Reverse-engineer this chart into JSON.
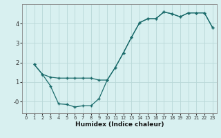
{
  "xlabel": "Humidex (Indice chaleur)",
  "bg_color": "#d8f0f0",
  "grid_color": "#b8d8d8",
  "line_color": "#1a6b6b",
  "xlim": [
    -0.5,
    23.5
  ],
  "ylim": [
    -0.6,
    5.0
  ],
  "yticks": [
    0,
    1,
    2,
    3,
    4
  ],
  "ytick_labels": [
    "-0",
    "1",
    "2",
    "3",
    "4"
  ],
  "xticks": [
    0,
    1,
    2,
    3,
    4,
    5,
    6,
    7,
    8,
    9,
    10,
    11,
    12,
    13,
    14,
    15,
    16,
    17,
    18,
    19,
    20,
    21,
    22,
    23
  ],
  "curve1_x": [
    1,
    2,
    3,
    4,
    5,
    6,
    7,
    8,
    9,
    10,
    11,
    12,
    13,
    14,
    15,
    16,
    17,
    18,
    19,
    20,
    21,
    22,
    23
  ],
  "curve1_y": [
    1.9,
    1.4,
    0.8,
    -0.12,
    -0.15,
    -0.28,
    -0.22,
    -0.22,
    0.15,
    1.1,
    1.75,
    2.5,
    3.3,
    4.05,
    4.25,
    4.25,
    4.6,
    4.5,
    4.35,
    4.55,
    4.55,
    4.55,
    3.8
  ],
  "curve2_x": [
    1,
    2,
    3,
    4,
    5,
    6,
    7,
    8,
    9,
    10,
    11,
    12,
    13,
    14,
    15,
    16,
    17,
    18,
    19,
    20,
    21,
    22,
    23
  ],
  "curve2_y": [
    1.9,
    1.4,
    1.25,
    1.2,
    1.2,
    1.2,
    1.2,
    1.2,
    1.1,
    1.1,
    1.75,
    2.5,
    3.3,
    4.05,
    4.25,
    4.25,
    4.6,
    4.5,
    4.35,
    4.55,
    4.55,
    4.55,
    3.8
  ]
}
